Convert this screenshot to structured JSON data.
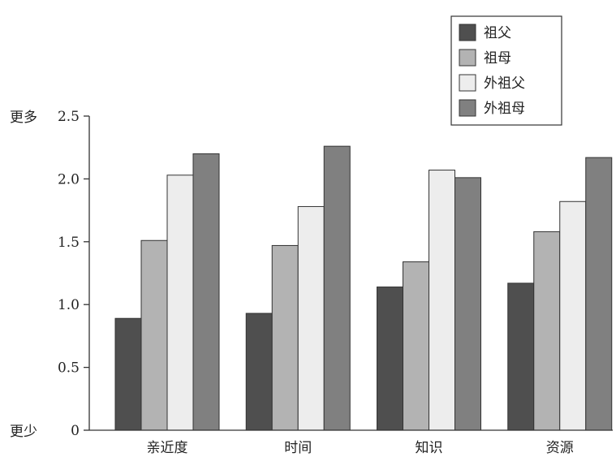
{
  "chart_data": {
    "type": "bar",
    "categories": [
      "亲近度",
      "时间",
      "知识",
      "资源"
    ],
    "series": [
      {
        "name": "祖父",
        "values": [
          0.89,
          0.93,
          1.14,
          1.17
        ],
        "color": "#4f4f4f"
      },
      {
        "name": "祖母",
        "values": [
          1.51,
          1.47,
          1.34,
          1.58
        ],
        "color": "#b3b3b3"
      },
      {
        "name": "外祖父",
        "values": [
          2.03,
          1.78,
          2.07,
          1.82
        ],
        "color": "#ededed"
      },
      {
        "name": "外祖母",
        "values": [
          2.2,
          2.26,
          2.01,
          2.17
        ],
        "color": "#808080"
      }
    ],
    "ylim": [
      0,
      2.5
    ],
    "yticks": [
      "0",
      "0.5",
      "1.0",
      "1.5",
      "2.0",
      "2.5"
    ],
    "ytick_values": [
      0,
      0.5,
      1.0,
      1.5,
      2.0,
      2.5
    ],
    "y_top_label": "更多",
    "y_bottom_label": "更少",
    "legend_position": "top-right",
    "grid": false
  }
}
